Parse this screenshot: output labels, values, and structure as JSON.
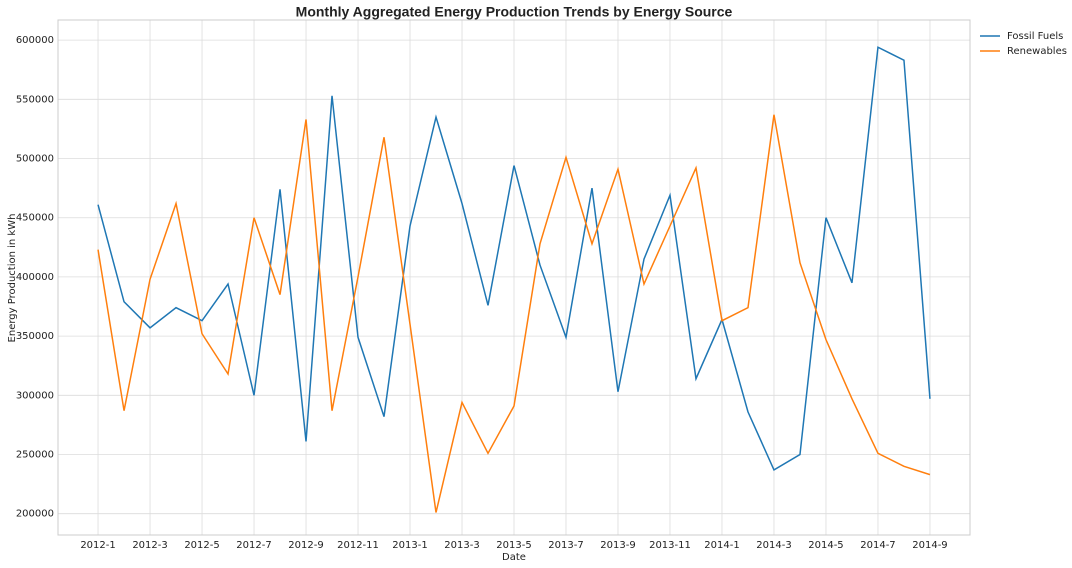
{
  "chart_data": {
    "type": "line",
    "title": "Monthly Aggregated Energy Production Trends by Energy Source",
    "x_label": "Date",
    "y_label": "Energy Production in kWh",
    "categories": [
      "2012-1",
      null,
      "2012-3",
      null,
      "2012-5",
      null,
      "2012-7",
      null,
      "2012-9",
      null,
      "2012-11",
      null,
      "2013-1",
      null,
      "2013-3",
      null,
      "2013-5",
      null,
      "2013-7",
      null,
      "2013-9",
      null,
      "2013-11",
      null,
      "2014-1",
      null,
      "2014-3",
      null,
      "2014-5",
      null,
      "2014-7",
      null,
      "2014-9"
    ],
    "series": [
      {
        "name": "Fossil Fuels",
        "color": "#1f77b4",
        "values": [
          461000,
          379000,
          357000,
          374000,
          363000,
          394000,
          300000,
          474000,
          261000,
          553000,
          349000,
          282000,
          443000,
          535000,
          462000,
          376000,
          494000,
          410000,
          349000,
          475000,
          303000,
          415000,
          469000,
          314000,
          364000,
          286000,
          237000,
          250000,
          450000,
          395000,
          594000,
          583000,
          297000
        ]
      },
      {
        "name": "Renewables",
        "color": "#ff7f0e",
        "values": [
          423000,
          287000,
          398000,
          462000,
          352000,
          318000,
          450000,
          385000,
          533000,
          287000,
          400000,
          518000,
          360000,
          201000,
          294000,
          251000,
          291000,
          428000,
          501000,
          428000,
          491000,
          394000,
          443000,
          492000,
          363000,
          374000,
          537000,
          412000,
          347000,
          297000,
          251000,
          240000,
          233000
        ]
      }
    ],
    "ylim": [
      182000,
      617000
    ],
    "yticks": [
      200000,
      250000,
      300000,
      350000,
      400000,
      450000,
      500000,
      550000,
      600000
    ],
    "grid": true,
    "legend": "outside-right"
  }
}
